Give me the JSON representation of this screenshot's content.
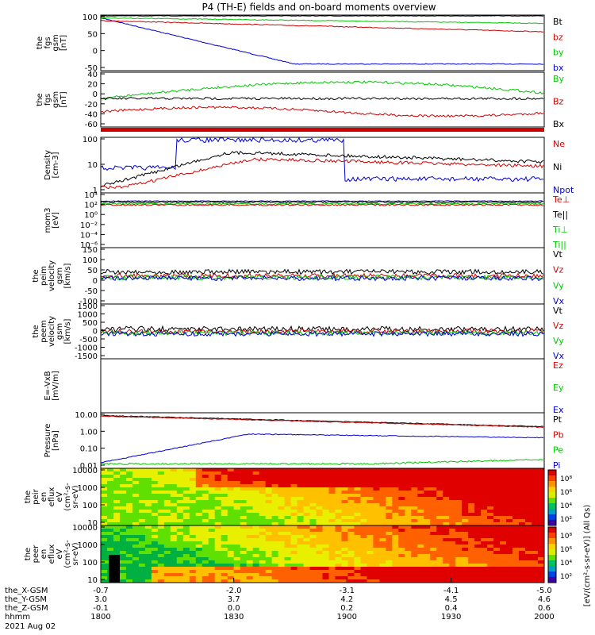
{
  "title": "P4 (TH-E) fields and on-board moments overview",
  "colors": {
    "black": "#000000",
    "red": "#d00000",
    "green": "#00c800",
    "blue": "#0000d0"
  },
  "chart_data": [
    {
      "type": "line",
      "ylabel": [
        "the",
        "fgs",
        "gsm",
        "[nT]"
      ],
      "yticks": [
        "100",
        "50",
        "0",
        "-50"
      ],
      "legend": [
        {
          "label": "Bt",
          "color": "#000000"
        },
        {
          "label": "bz",
          "color": "#d00000"
        },
        {
          "label": "by",
          "color": "#00c800"
        },
        {
          "label": "bx",
          "color": "#0000d0"
        }
      ]
    },
    {
      "type": "line",
      "ylabel": [
        "the",
        "fgs",
        "gsm",
        "[nT]"
      ],
      "yticks": [
        "40",
        "20",
        "0",
        "-20",
        "-40",
        "-60"
      ],
      "legend": [
        {
          "label": "By",
          "color": "#00c800"
        },
        {
          "label": "Bz",
          "color": "#d00000"
        },
        {
          "label": "Bx",
          "color": "#000000"
        }
      ]
    },
    {
      "type": "line",
      "ylabel": [
        "Density",
        "[cm-3]"
      ],
      "yticks": [
        "100",
        "10",
        "1"
      ],
      "legend": [
        {
          "label": "Ne",
          "color": "#d00000"
        },
        {
          "label": "Ni",
          "color": "#000000"
        },
        {
          "label": "Npot",
          "color": "#0000d0"
        }
      ]
    },
    {
      "type": "line",
      "ylabel": [
        "mom3",
        "[eV]"
      ],
      "yticks": [
        "10⁴",
        "10²",
        "10⁰",
        "10⁻²",
        "10⁻⁴",
        "10⁻⁶"
      ],
      "legend": [
        {
          "label": "Te⊥",
          "color": "#d00000"
        },
        {
          "label": "Te||",
          "color": "#000000"
        },
        {
          "label": "Ti⊥",
          "color": "#00c800"
        },
        {
          "label": "Ti||",
          "color": "#00c800"
        }
      ]
    },
    {
      "type": "line",
      "ylabel": [
        "the",
        "peim",
        "velocity",
        "gsm",
        "[km/s]"
      ],
      "yticks": [
        "150",
        "100",
        "50",
        "0",
        "-50",
        "-100"
      ],
      "legend": [
        {
          "label": "Vt",
          "color": "#000000"
        },
        {
          "label": "Vz",
          "color": "#d00000"
        },
        {
          "label": "Vy",
          "color": "#00c800"
        },
        {
          "label": "Vx",
          "color": "#0000d0"
        }
      ]
    },
    {
      "type": "line",
      "ylabel": [
        "the",
        "peem",
        "velocity",
        "gsm",
        "[km/s]"
      ],
      "yticks": [
        "1500",
        "1000",
        "500",
        "0",
        "-500",
        "-1000",
        "-1500"
      ],
      "legend": [
        {
          "label": "Vt",
          "color": "#000000"
        },
        {
          "label": "Vz",
          "color": "#d00000"
        },
        {
          "label": "Vy",
          "color": "#00c800"
        },
        {
          "label": "Vx",
          "color": "#0000d0"
        }
      ]
    },
    {
      "type": "line",
      "ylabel": [
        "E=-VxB",
        "[mV/m]"
      ],
      "yticks": [],
      "legend": [
        {
          "label": "Ez",
          "color": "#d00000"
        },
        {
          "label": "Ey",
          "color": "#00c800"
        },
        {
          "label": "Ex",
          "color": "#0000d0"
        }
      ]
    },
    {
      "type": "line",
      "ylabel": [
        "Pressure",
        "[nPa]"
      ],
      "yticks": [
        "10.00",
        "1.00",
        "0.10",
        "0.01"
      ],
      "legend": [
        {
          "label": "Pt",
          "color": "#000000"
        },
        {
          "label": "Pb",
          "color": "#d00000"
        },
        {
          "label": "Pe",
          "color": "#00c800"
        },
        {
          "label": "Pi",
          "color": "#0000d0"
        }
      ]
    },
    {
      "type": "heatmap",
      "ylabel": [
        "the",
        "peir",
        "en",
        "eflux",
        "eV",
        "(cm²-s-",
        "sr-eV)"
      ],
      "yticks": [
        "10000",
        "1000",
        "100",
        "10"
      ]
    },
    {
      "type": "heatmap",
      "ylabel": [
        "the",
        "peer",
        "en",
        "eflux",
        "eV",
        "(cm²-s-",
        "sr-eV)"
      ],
      "yticks": [
        "10000",
        "1000",
        "100",
        "10"
      ]
    }
  ],
  "colorbar": {
    "label": "[eV/(cm²-s-sr-eV)] (All Qs)",
    "ticks": [
      "10⁸",
      "10⁶",
      "10⁴",
      "10²"
    ]
  },
  "xaxis": {
    "rows": [
      {
        "label": "the_X-GSM",
        "values": [
          "-0.7",
          "-2.0",
          "-3.1",
          "-4.1",
          "-5.0"
        ]
      },
      {
        "label": "the_Y-GSM",
        "values": [
          "3.0",
          "3.7",
          "4.2",
          "4.5",
          "4.6"
        ]
      },
      {
        "label": "the_Z-GSM",
        "values": [
          "-0.1",
          "0.0",
          "0.2",
          "0.4",
          "0.6"
        ]
      },
      {
        "label": "hhmm",
        "values": [
          "1800",
          "1830",
          "1900",
          "1930",
          "2000"
        ]
      }
    ],
    "date": "2021 Aug 02"
  }
}
